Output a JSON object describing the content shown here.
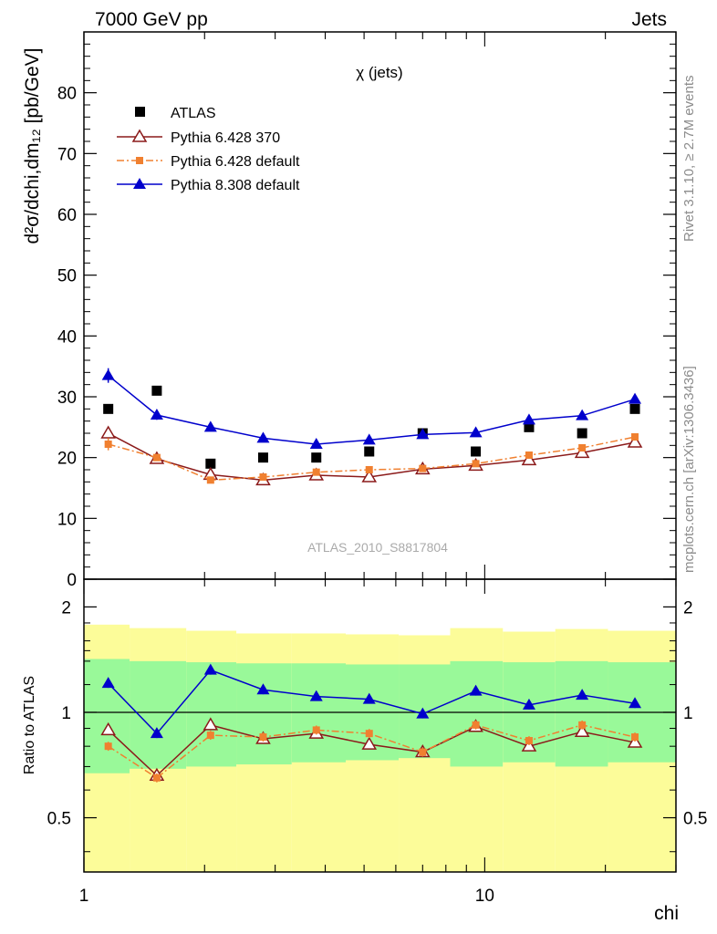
{
  "header": {
    "left": "7000 GeV pp",
    "right": "Jets"
  },
  "side": {
    "rivet": "Rivet 3.1.10, ≥ 2.7M events",
    "mcplots": "mcplots.cern.ch [arXiv:1306.3436]"
  },
  "chart_data": [
    {
      "type": "scatter",
      "title": "χ (jets)",
      "ylabel_main": "d²σ/dchi,dm₁₂ [pb/GeV]",
      "watermark": "ATLAS_2010_S8817804",
      "xscale": "log",
      "xlim": [
        1,
        30
      ],
      "ylim": [
        0,
        90
      ],
      "grid": false,
      "legend_position": "top-left",
      "x_tick_labels": [
        "1",
        "10"
      ],
      "y_tick_labels": [
        "0",
        "10",
        "20",
        "30",
        "40",
        "50",
        "60",
        "70",
        "80"
      ],
      "series": [
        {
          "name": "ATLAS",
          "style": "marker-only",
          "marker": "square",
          "color": "#000000",
          "x": [
            1.15,
            1.52,
            2.07,
            2.8,
            3.8,
            5.15,
            7.0,
            9.5,
            12.9,
            17.5,
            23.7
          ],
          "y": [
            28,
            31,
            19,
            20,
            20,
            21,
            24,
            21,
            25,
            24,
            28
          ]
        },
        {
          "name": "Pythia 6.428 370",
          "style": "solid",
          "marker": "triangle-open",
          "color": "#8b1a1a",
          "x": [
            1.15,
            1.52,
            2.07,
            2.8,
            3.8,
            5.15,
            7.0,
            9.5,
            12.9,
            17.5,
            23.7
          ],
          "y": [
            24,
            19.8,
            17.2,
            16.3,
            17.1,
            16.8,
            18.1,
            18.7,
            19.6,
            20.8,
            22.5
          ],
          "err": [
            1.0,
            0.5,
            0.5,
            0.4,
            0.4,
            0.4,
            0.4,
            0.4,
            0.4,
            0.4,
            0.5
          ]
        },
        {
          "name": "Pythia 6.428 default",
          "style": "dashdot",
          "marker": "square-small",
          "color": "#f08030",
          "x": [
            1.15,
            1.52,
            2.07,
            2.8,
            3.8,
            5.15,
            7.0,
            9.5,
            12.9,
            17.5,
            23.7
          ],
          "y": [
            22.2,
            20,
            16.3,
            16.8,
            17.6,
            18,
            18.2,
            19,
            20.4,
            21.6,
            23.4
          ],
          "err": [
            1.0,
            0.5,
            0.5,
            0.4,
            0.4,
            0.4,
            0.4,
            0.4,
            0.4,
            0.4,
            0.5
          ]
        },
        {
          "name": "Pythia 8.308 default",
          "style": "solid",
          "marker": "triangle-filled",
          "color": "#0000cc",
          "x": [
            1.15,
            1.52,
            2.07,
            2.8,
            3.8,
            5.15,
            7.0,
            9.5,
            12.9,
            17.5,
            23.7
          ],
          "y": [
            33.5,
            27,
            25,
            23.2,
            22.2,
            22.9,
            23.8,
            24.1,
            26.2,
            26.9,
            29.6
          ],
          "err": [
            1.2,
            0.8,
            0.6,
            0.5,
            0.4,
            0.4,
            0.4,
            0.4,
            0.5,
            0.5,
            0.6
          ]
        }
      ]
    },
    {
      "type": "scatter",
      "ylabel": "Ratio to ATLAS",
      "xlabel": "chi",
      "xscale": "log",
      "yscale": "log",
      "xlim": [
        1,
        30
      ],
      "ylim": [
        0.35,
        2.4
      ],
      "reference_line": 1,
      "x_tick_labels": [
        "1",
        "10"
      ],
      "y_tick_labels": [
        "0.5",
        "1",
        "2"
      ],
      "uncertainty_bands": {
        "bin_edges": [
          1,
          1.3,
          1.8,
          2.4,
          3.3,
          4.5,
          6.1,
          8.2,
          11.1,
          15.0,
          20.3,
          30
        ],
        "inner_color": "#99f999",
        "outer_color": "#fcfc99",
        "inner_low": [
          0.67,
          0.69,
          0.7,
          0.71,
          0.72,
          0.73,
          0.74,
          0.7,
          0.72,
          0.7,
          0.72
        ],
        "inner_high": [
          1.42,
          1.4,
          1.39,
          1.38,
          1.38,
          1.37,
          1.37,
          1.4,
          1.39,
          1.4,
          1.39
        ],
        "outer_low": [
          0.35,
          0.35,
          0.35,
          0.35,
          0.35,
          0.35,
          0.35,
          0.35,
          0.35,
          0.35,
          0.35
        ],
        "outer_high": [
          1.78,
          1.74,
          1.71,
          1.68,
          1.68,
          1.67,
          1.66,
          1.74,
          1.7,
          1.73,
          1.71
        ]
      },
      "series": [
        {
          "name": "Pythia 6.428 370",
          "color": "#8b1a1a",
          "x": [
            1.15,
            1.52,
            2.07,
            2.8,
            3.8,
            5.15,
            7.0,
            9.5,
            12.9,
            17.5,
            23.7
          ],
          "y": [
            0.89,
            0.66,
            0.92,
            0.84,
            0.87,
            0.81,
            0.77,
            0.91,
            0.8,
            0.88,
            0.82
          ]
        },
        {
          "name": "Pythia 6.428 default",
          "color": "#f08030",
          "x": [
            1.15,
            1.52,
            2.07,
            2.8,
            3.8,
            5.15,
            7.0,
            9.5,
            12.9,
            17.5,
            23.7
          ],
          "y": [
            0.8,
            0.65,
            0.86,
            0.85,
            0.89,
            0.87,
            0.77,
            0.92,
            0.83,
            0.92,
            0.85
          ]
        },
        {
          "name": "Pythia 8.308 default",
          "color": "#0000cc",
          "x": [
            1.15,
            1.52,
            2.07,
            2.8,
            3.8,
            5.15,
            7.0,
            9.5,
            12.9,
            17.5,
            23.7
          ],
          "y": [
            1.21,
            0.87,
            1.32,
            1.16,
            1.11,
            1.09,
            0.99,
            1.15,
            1.05,
            1.12,
            1.06
          ]
        }
      ]
    }
  ]
}
